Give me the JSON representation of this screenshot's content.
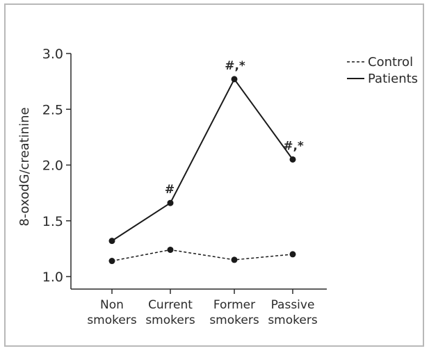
{
  "chart_data": {
    "type": "line",
    "categories": [
      [
        "Non",
        "smokers"
      ],
      [
        "Current",
        "smokers"
      ],
      [
        "Former",
        "smokers"
      ],
      [
        "Passive",
        "smokers"
      ]
    ],
    "ylabel": "8-oxodG/creatinine",
    "xlabel": "",
    "ylim": [
      1.0,
      3.0
    ],
    "yticks": [
      "1.0",
      "1.5",
      "2.0",
      "2.5",
      "3.0"
    ],
    "legend_position": "top-right, outside plot",
    "series": [
      {
        "name": "Control",
        "style": "dashed",
        "values": [
          1.14,
          1.24,
          1.15,
          1.2
        ]
      },
      {
        "name": "Patients",
        "style": "solid",
        "values": [
          1.32,
          1.66,
          2.77,
          2.05
        ]
      }
    ],
    "annotations": [
      {
        "category": 1,
        "series": "Patients",
        "text": "#"
      },
      {
        "category": 2,
        "series": "Patients",
        "text": "#,*"
      },
      {
        "category": 3,
        "series": "Patients",
        "text": "#,*"
      }
    ],
    "grid": false,
    "colors": {
      "line": "#1a1a1a",
      "border": "#b8b8b8",
      "background": "#ffffff"
    }
  }
}
